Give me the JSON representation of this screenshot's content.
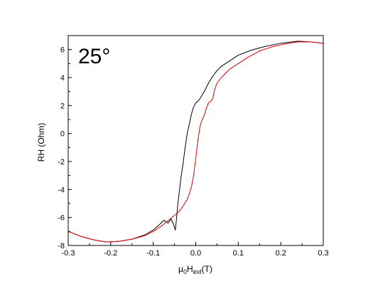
{
  "chart_data": {
    "type": "line",
    "title": "",
    "annotation": "25°",
    "xlabel": {
      "base": "μ",
      "sub1": "0",
      "mid": "H",
      "sub2": "ext",
      "tail": "(T)"
    },
    "ylabel": "RH (Ohm)",
    "xlim": [
      -0.3,
      0.3
    ],
    "ylim": [
      -8,
      7
    ],
    "xticks": [
      -0.3,
      -0.2,
      -0.1,
      0.0,
      0.1,
      0.2,
      0.3
    ],
    "xtick_labels": [
      "-0.3",
      "-0.2",
      "-0.1",
      "0.0",
      "0.1",
      "0.2",
      "0.3"
    ],
    "yticks": [
      -8,
      -6,
      -4,
      -2,
      0,
      2,
      4,
      6
    ],
    "ytick_labels": [
      "-8",
      "-6",
      "-4",
      "-2",
      "0",
      "2",
      "4",
      "6"
    ],
    "grid": false,
    "legend": "none",
    "series": [
      {
        "color": "#000000",
        "x": [
          -0.3,
          -0.27,
          -0.24,
          -0.21,
          -0.18,
          -0.15,
          -0.12,
          -0.1,
          -0.085,
          -0.075,
          -0.065,
          -0.058,
          -0.052,
          -0.048,
          -0.045,
          -0.042,
          -0.038,
          -0.035,
          -0.03,
          -0.025,
          -0.02,
          -0.015,
          -0.01,
          -0.005,
          0.0,
          0.005,
          0.01,
          0.02,
          0.03,
          0.04,
          0.05,
          0.06,
          0.08,
          0.1,
          0.13,
          0.16,
          0.2,
          0.24,
          0.27,
          0.3
        ],
        "y": [
          -7.0,
          -7.35,
          -7.6,
          -7.75,
          -7.7,
          -7.55,
          -7.25,
          -6.9,
          -6.5,
          -6.2,
          -6.4,
          -6.1,
          -6.5,
          -6.9,
          -6.0,
          -5.0,
          -4.0,
          -3.2,
          -2.2,
          -1.0,
          0.0,
          0.7,
          1.4,
          1.9,
          2.2,
          2.3,
          2.5,
          3.0,
          3.6,
          4.1,
          4.5,
          4.8,
          5.2,
          5.6,
          5.95,
          6.2,
          6.45,
          6.6,
          6.55,
          6.45
        ]
      },
      {
        "color": "#e00000",
        "x": [
          -0.3,
          -0.27,
          -0.24,
          -0.21,
          -0.18,
          -0.15,
          -0.12,
          -0.1,
          -0.08,
          -0.06,
          -0.04,
          -0.03,
          -0.02,
          -0.015,
          -0.01,
          -0.005,
          0.0,
          0.005,
          0.01,
          0.015,
          0.02,
          0.025,
          0.03,
          0.035,
          0.04,
          0.045,
          0.05,
          0.055,
          0.06,
          0.07,
          0.08,
          0.1,
          0.12,
          0.15,
          0.18,
          0.21,
          0.24,
          0.27,
          0.3
        ],
        "y": [
          -7.0,
          -7.35,
          -7.6,
          -7.75,
          -7.7,
          -7.55,
          -7.3,
          -7.0,
          -6.6,
          -6.1,
          -5.6,
          -5.2,
          -4.7,
          -4.3,
          -3.8,
          -3.0,
          -1.8,
          -0.5,
          0.5,
          1.0,
          1.3,
          1.8,
          2.2,
          2.3,
          2.5,
          3.2,
          3.6,
          3.8,
          4.0,
          4.3,
          4.6,
          5.0,
          5.4,
          5.9,
          6.2,
          6.4,
          6.55,
          6.55,
          6.45
        ]
      }
    ]
  }
}
